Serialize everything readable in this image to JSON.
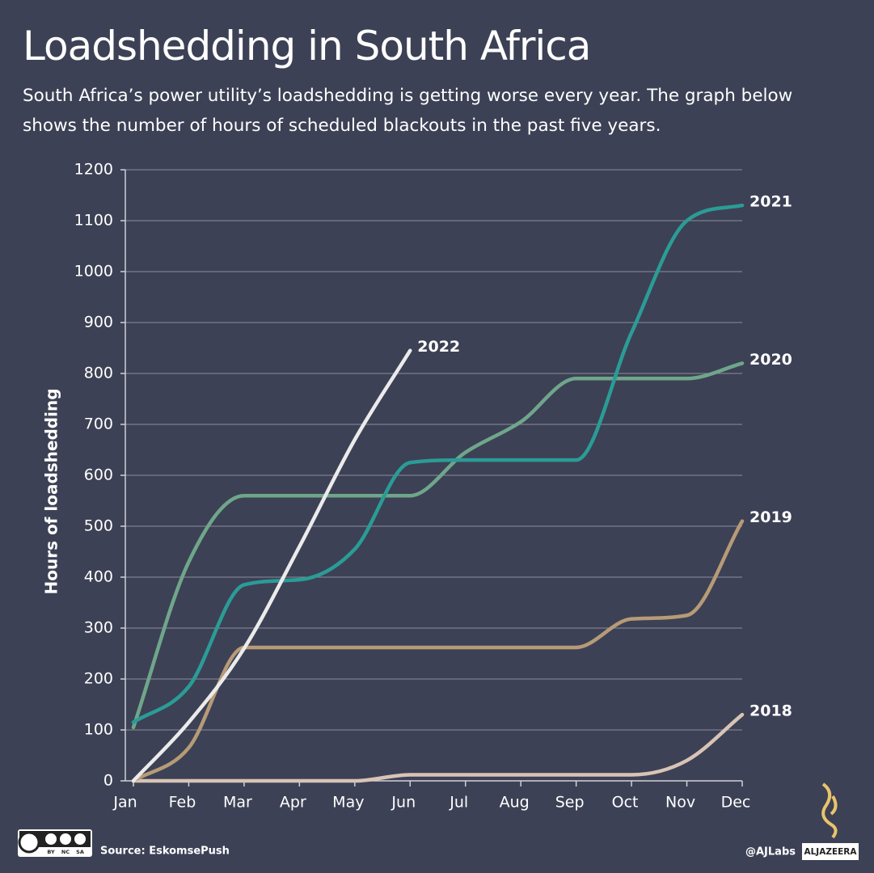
{
  "chart_data": {
    "type": "line",
    "title": "Loadshedding in South Africa",
    "subtitle": "South Africa’s power utility’s loadshedding is getting worse every year. The graph below shows the number of hours of scheduled blackouts in the past five years.",
    "y_label": "Hours of loadshedding",
    "categories": [
      "Jan",
      "Feb",
      "Mar",
      "Apr",
      "May",
      "Jun",
      "Jul",
      "Aug",
      "Sep",
      "Oct",
      "Nov",
      "Dec"
    ],
    "series": [
      {
        "name": "2018",
        "color": "#d8c4b6",
        "values": [
          0,
          0,
          0,
          0,
          0,
          12,
          12,
          12,
          12,
          12,
          40,
          130
        ]
      },
      {
        "name": "2019",
        "color": "#b69b77",
        "values": [
          0,
          65,
          262,
          262,
          262,
          262,
          262,
          262,
          262,
          318,
          325,
          510
        ]
      },
      {
        "name": "2020",
        "color": "#6fa68b",
        "values": [
          105,
          430,
          560,
          560,
          560,
          560,
          645,
          705,
          790,
          790,
          790,
          820
        ]
      },
      {
        "name": "2021",
        "color": "#2a9c96",
        "values": [
          115,
          185,
          385,
          395,
          455,
          625,
          630,
          630,
          630,
          880,
          1100,
          1130
        ]
      },
      {
        "name": "2022",
        "color": "#ebebeb",
        "values": [
          0,
          115,
          260,
          460,
          670,
          845,
          null,
          null,
          null,
          null,
          null,
          null
        ]
      }
    ],
    "ylim": [
      0,
      1200
    ],
    "yticks": [
      0,
      100,
      200,
      300,
      400,
      500,
      600,
      700,
      800,
      900,
      1000,
      1100,
      1200
    ],
    "grid": true,
    "source": "Source: EskomsePush",
    "credit": "@AJLabs",
    "logo": "ALJAZEERA",
    "license": [
      "BY",
      "NC",
      "SA"
    ]
  }
}
